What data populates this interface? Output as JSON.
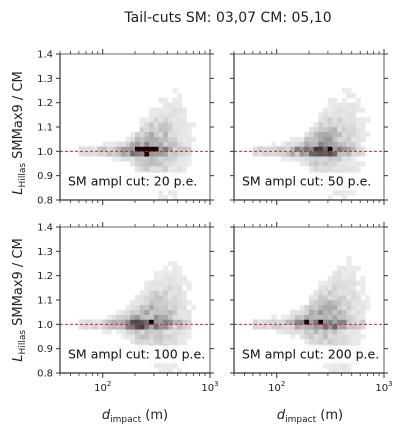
{
  "figure": {
    "title": "Tail-cuts SM: 03,07 CM: 05,10"
  },
  "chart_data": {
    "type": "heatmap",
    "title": "Tail-cuts SM: 03,07 CM: 05,10",
    "xlabel": {
      "main": "d",
      "sub": "impact",
      "unit": " (m)"
    },
    "ylabel": {
      "main": "L",
      "sub": "Hillas",
      "rest": " SMMax9 / CM"
    },
    "xscale": "log",
    "xlim": [
      40,
      1000
    ],
    "ylim": [
      0.8,
      1.4
    ],
    "x_ticks": [
      {
        "value": 100,
        "base": "10",
        "exp": "2"
      },
      {
        "value": 1000,
        "base": "10",
        "exp": "3"
      }
    ],
    "y_ticks": [
      "0.8",
      "0.9",
      "1.0",
      "1.1",
      "1.2",
      "1.3",
      "1.4"
    ],
    "reference_line": {
      "y": 1.0,
      "color": "#d62728",
      "style": "dashed"
    },
    "colormap": "greys",
    "panels": [
      {
        "annotation": "SM ampl cut: 20 p.e.",
        "cut_pe": 20
      },
      {
        "annotation": "SM ampl cut: 50 p.e.",
        "cut_pe": 50
      },
      {
        "annotation": "SM ampl cut: 100 p.e.",
        "cut_pe": 100
      },
      {
        "annotation": "SM ampl cut: 200 p.e.",
        "cut_pe": 200
      }
    ]
  }
}
